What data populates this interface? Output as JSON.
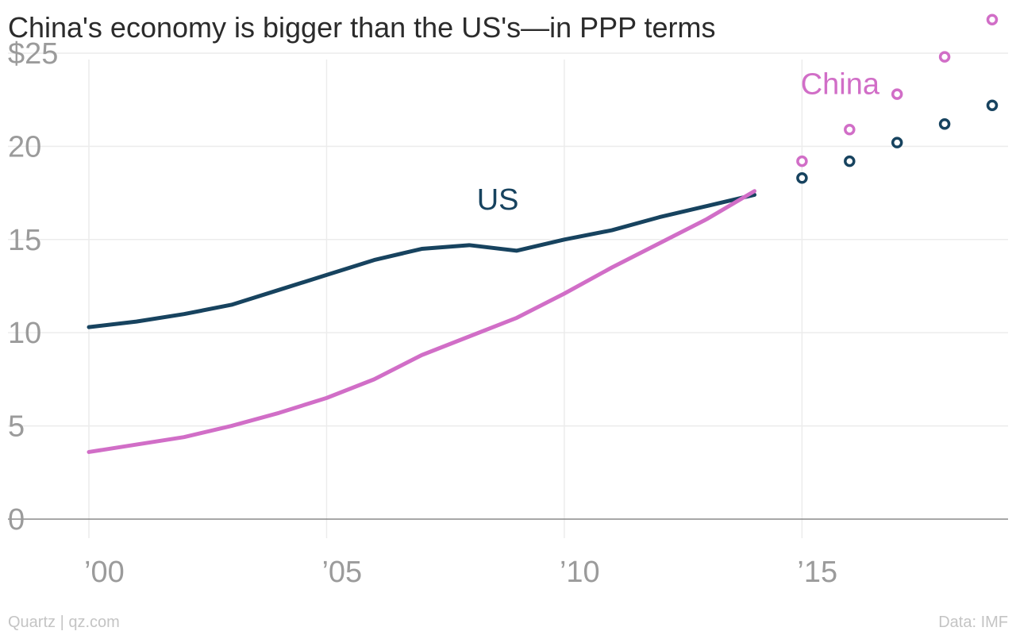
{
  "chart_data": {
    "type": "line",
    "title": "China's economy is bigger than the US's—in PPP terms",
    "ylim": [
      0,
      27
    ],
    "xlim": [
      2000,
      2019
    ],
    "y_ticks": [
      {
        "value": 0,
        "label": "0"
      },
      {
        "value": 5,
        "label": "5"
      },
      {
        "value": 10,
        "label": "10"
      },
      {
        "value": 15,
        "label": "15"
      },
      {
        "value": 20,
        "label": "20"
      },
      {
        "value": 25,
        "label": "$25"
      }
    ],
    "x_ticks": [
      {
        "value": 2000,
        "label": "’00"
      },
      {
        "value": 2005,
        "label": "’05"
      },
      {
        "value": 2010,
        "label": "’10"
      },
      {
        "value": 2015,
        "label": "’15"
      }
    ],
    "grid": true,
    "series": [
      {
        "name": "US",
        "color": "#17435f",
        "x": [
          2000,
          2001,
          2002,
          2003,
          2004,
          2005,
          2006,
          2007,
          2008,
          2009,
          2010,
          2011,
          2012,
          2013,
          2014
        ],
        "values": [
          10.3,
          10.6,
          11.0,
          11.5,
          12.3,
          13.1,
          13.9,
          14.5,
          14.7,
          14.4,
          15.0,
          15.5,
          16.2,
          16.8,
          17.4
        ],
        "projection_x": [
          2015,
          2016,
          2017,
          2018,
          2019
        ],
        "projection_values": [
          18.3,
          19.2,
          20.2,
          21.2,
          22.2
        ]
      },
      {
        "name": "China",
        "color": "#d16ec7",
        "x": [
          2000,
          2001,
          2002,
          2003,
          2004,
          2005,
          2006,
          2007,
          2008,
          2009,
          2010,
          2011,
          2012,
          2013,
          2014
        ],
        "values": [
          3.6,
          4.0,
          4.4,
          5.0,
          5.7,
          6.5,
          7.5,
          8.8,
          9.8,
          10.8,
          12.1,
          13.5,
          14.8,
          16.1,
          17.6
        ],
        "projection_x": [
          2015,
          2016,
          2017,
          2018,
          2019
        ],
        "projection_values": [
          19.2,
          20.9,
          22.8,
          24.8,
          26.8
        ]
      }
    ]
  },
  "footer": {
    "source_left": "Quartz | qz.com",
    "source_right": "Data: IMF"
  }
}
